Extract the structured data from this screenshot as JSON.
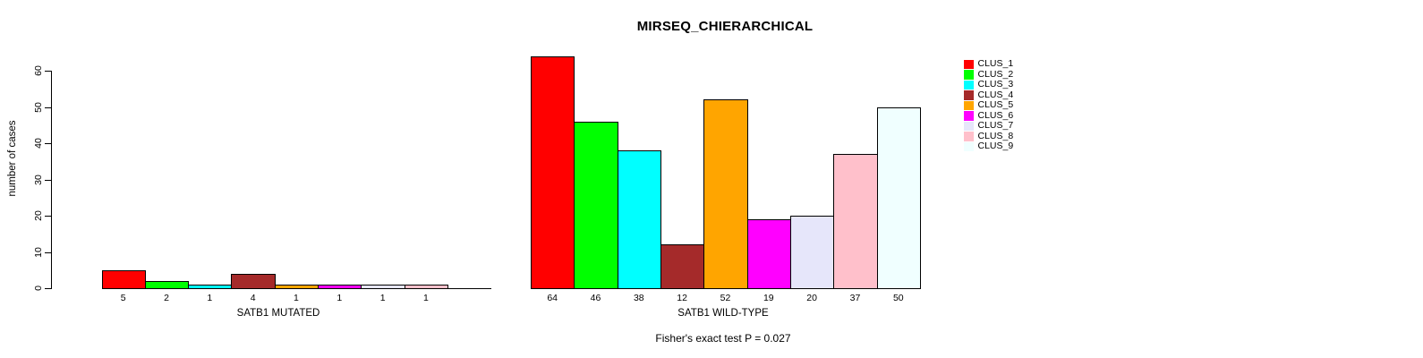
{
  "title": "MIRSEQ_CHIERARCHICAL",
  "chart_data": {
    "type": "bar",
    "title": "MIRSEQ_CHIERARCHICAL",
    "ylabel": "number of cases",
    "ylim": [
      0,
      60
    ],
    "yticks": [
      0,
      10,
      20,
      30,
      40,
      50,
      60
    ],
    "grid": false,
    "categories": [
      "CLUS_1",
      "CLUS_2",
      "CLUS_3",
      "CLUS_4",
      "CLUS_5",
      "CLUS_6",
      "CLUS_7",
      "CLUS_8",
      "CLUS_9"
    ],
    "colors": [
      "#FF0000",
      "#00FF00",
      "#00FFFF",
      "#A52A2A",
      "#FFA500",
      "#FF00FF",
      "#E6E6FA",
      "#FFC0CB",
      "#F0FFFF"
    ],
    "series": [
      {
        "name": "SATB1 MUTATED",
        "values": [
          5,
          2,
          1,
          4,
          1,
          1,
          1,
          1,
          0
        ],
        "bar_labels": [
          "5",
          "2",
          "1",
          "4",
          "1",
          "1",
          "1",
          "1",
          ""
        ]
      },
      {
        "name": "SATB1 WILD-TYPE",
        "values": [
          64,
          46,
          38,
          12,
          52,
          19,
          20,
          37,
          50
        ],
        "bar_labels": [
          "64",
          "46",
          "38",
          "12",
          "52",
          "19",
          "20",
          "37",
          "50"
        ]
      }
    ],
    "legend": {
      "position": "right",
      "entries": [
        "CLUS_1",
        "CLUS_2",
        "CLUS_3",
        "CLUS_4",
        "CLUS_5",
        "CLUS_6",
        "CLUS_7",
        "CLUS_8",
        "CLUS_9"
      ]
    },
    "annotation": "Fisher's exact test P = 0.027"
  }
}
